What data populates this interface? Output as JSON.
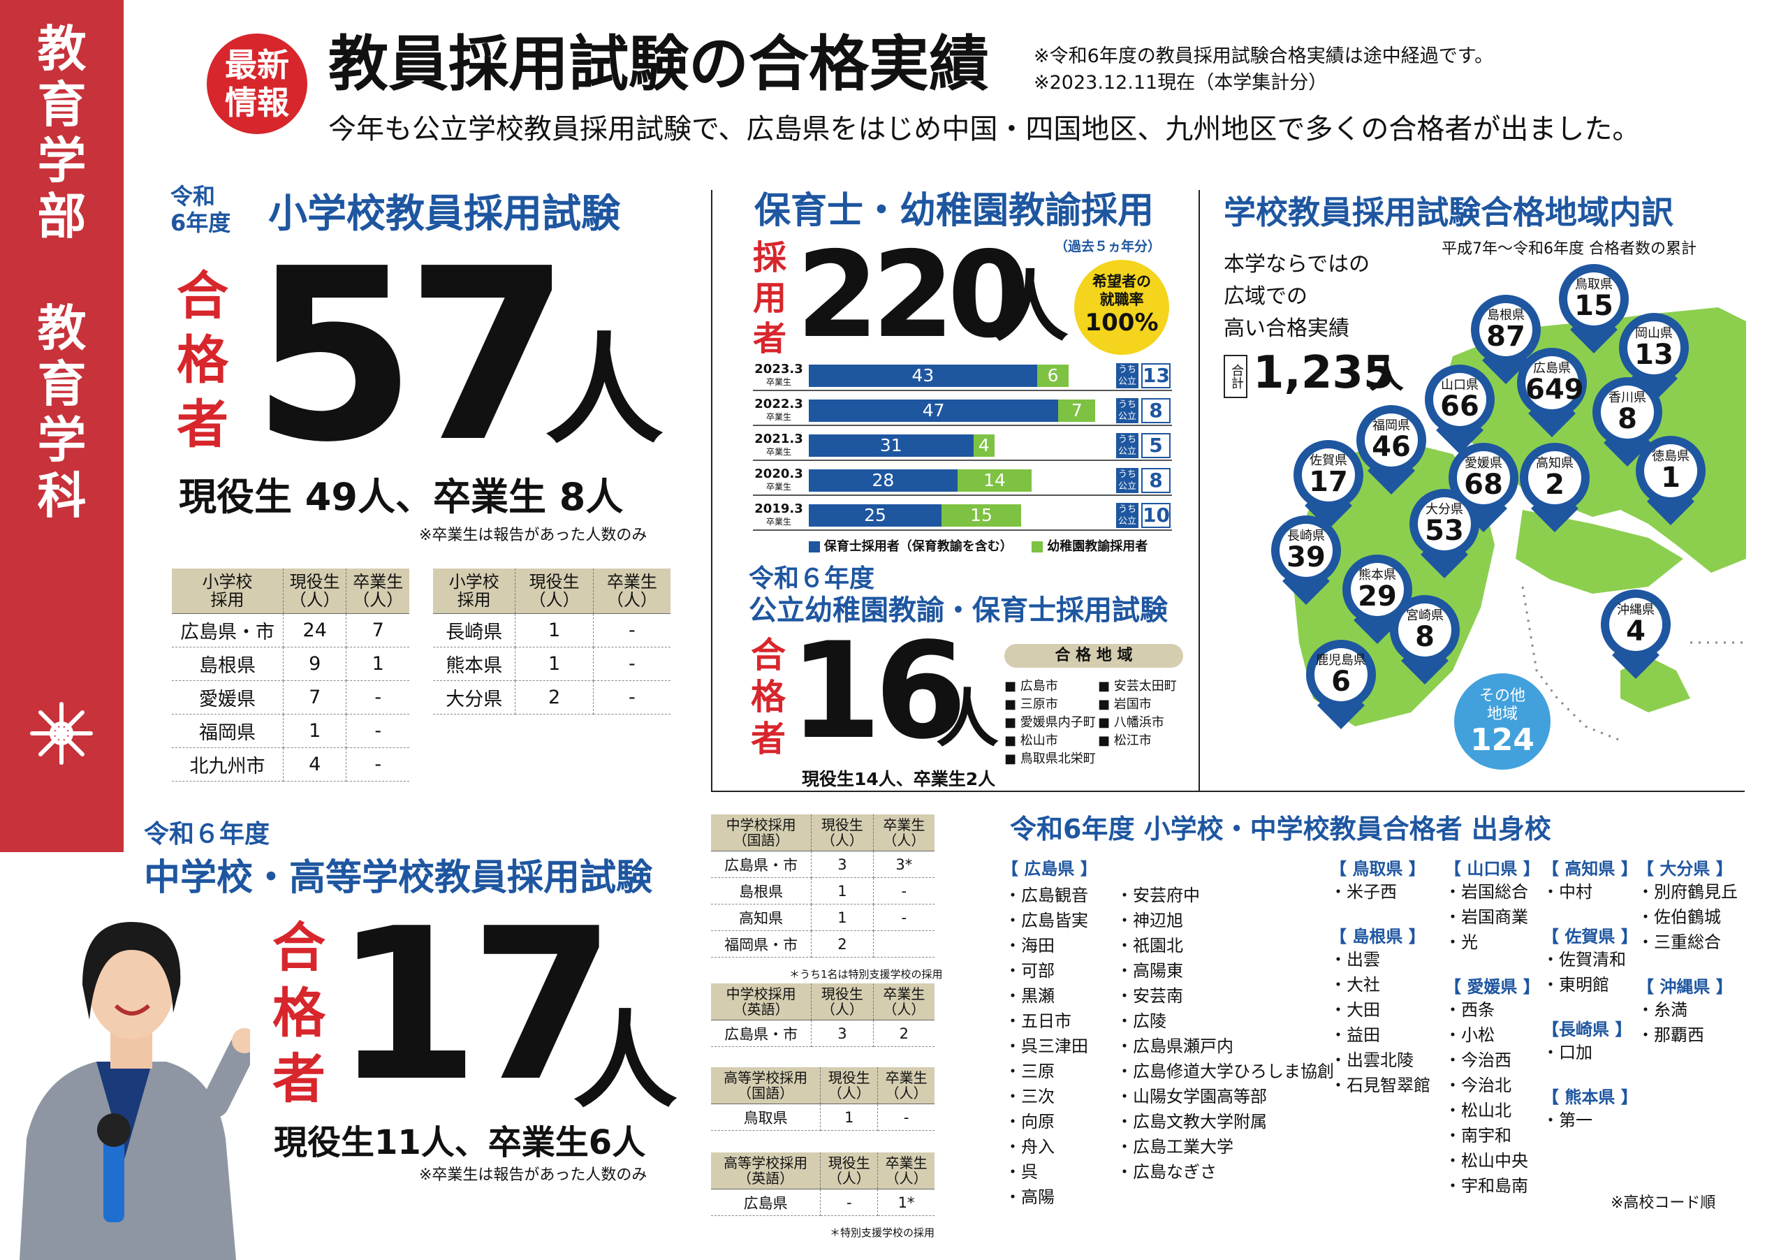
{
  "sidebar": {
    "department": "教育学部",
    "section": "教育学科"
  },
  "header": {
    "badge_line1": "最新",
    "badge_line2": "情報",
    "title": "教員採用試験の合格実績",
    "note1": "※令和6年度の教員採用試験合格実績は途中経過です。",
    "note2": "※2023.12.11現在（本学集計分）",
    "lead": "今年も公立学校教員採用試験で、広島県をはじめ中国・四国地区、九州地区で多くの合格者が出ました。"
  },
  "elem": {
    "year_line1": "令和",
    "year_line2": "6年度",
    "title": "小学校教員採用試験",
    "label": "合格者",
    "count": "57",
    "unit": "人",
    "breakdown": "現役生 49人、卒業生 8人",
    "note": "※卒業生は報告があった人数のみ",
    "table_headers": [
      "小学校\n採用",
      "現役生\n（人）",
      "卒業生\n（人）"
    ],
    "table1": [
      [
        "広島県・市",
        "24",
        "7"
      ],
      [
        "島根県",
        "9",
        "1"
      ],
      [
        "愛媛県",
        "7",
        "-"
      ],
      [
        "福岡県",
        "1",
        "-"
      ],
      [
        "北九州市",
        "4",
        "-"
      ]
    ],
    "table2": [
      [
        "長崎県",
        "1",
        "-"
      ],
      [
        "熊本県",
        "1",
        "-"
      ],
      [
        "大分県",
        "2",
        "-"
      ]
    ]
  },
  "nursery": {
    "title": "保育士・幼稚園教諭採用",
    "sub": "（過去５ヵ年分）",
    "label": "採用者",
    "count": "220",
    "unit": "人",
    "circle1": "希望者の",
    "circle2": "就職率",
    "circle3": "100%",
    "public_key": "うち\n公立",
    "legend1": "保育士採用者（保育教諭を含む）",
    "legend2": "幼稚園教諭採用者"
  },
  "chart_data": {
    "type": "bar",
    "stacked": true,
    "orientation": "horizontal",
    "categories": [
      "2023.3",
      "2022.3",
      "2021.3",
      "2020.3",
      "2019.3"
    ],
    "category_sub": "卒業生",
    "series": [
      {
        "name": "保育士採用者（保育教諭を含む）",
        "values": [
          43,
          47,
          31,
          28,
          25
        ]
      },
      {
        "name": "幼稚園教諭採用者",
        "values": [
          6,
          7,
          4,
          14,
          15
        ]
      }
    ],
    "public_counts": [
      13,
      8,
      5,
      8,
      10
    ],
    "colors": [
      "#1e56a0",
      "#7dc242"
    ]
  },
  "kinder": {
    "year": "令和６年度",
    "title": "公立幼稚園教諭・保育士採用試験",
    "label": "合格者",
    "count": "16",
    "unit": "人",
    "breakdown": "現役生14人、卒業生2人",
    "area_title": "合 格 地 域",
    "areas_left": [
      "広島市",
      "三原市",
      "愛媛県内子町",
      "松山市",
      "鳥取県北栄町"
    ],
    "areas_right": [
      "安芸太田町",
      "岩国市",
      "八幡浜市",
      "松江市"
    ]
  },
  "region": {
    "title": "学校教員採用試験合格地域内訳",
    "period": "平成7年～令和6年度 合格者数の累計",
    "lead1": "本学ならではの",
    "lead2": "広域での",
    "lead3": "高い合格実績",
    "total_label": "合計",
    "total": "1,235",
    "total_unit": "人",
    "pins": [
      {
        "name": "鳥取県",
        "value": "15"
      },
      {
        "name": "島根県",
        "value": "87"
      },
      {
        "name": "岡山県",
        "value": "13"
      },
      {
        "name": "広島県",
        "value": "649"
      },
      {
        "name": "山口県",
        "value": "66"
      },
      {
        "name": "香川県",
        "value": "8"
      },
      {
        "name": "福岡県",
        "value": "46"
      },
      {
        "name": "愛媛県",
        "value": "68"
      },
      {
        "name": "高知県",
        "value": "2"
      },
      {
        "name": "徳島県",
        "value": "1"
      },
      {
        "name": "佐賀県",
        "value": "17"
      },
      {
        "name": "大分県",
        "value": "53"
      },
      {
        "name": "長崎県",
        "value": "39"
      },
      {
        "name": "熊本県",
        "value": "29"
      },
      {
        "name": "宮崎県",
        "value": "8"
      },
      {
        "name": "鹿児島県",
        "value": "6"
      },
      {
        "name": "沖縄県",
        "value": "4"
      }
    ],
    "other_label1": "その他",
    "other_label2": "地域",
    "other_value": "124"
  },
  "secondary": {
    "year": "令和６年度",
    "title": "中学校・高等学校教員採用試験",
    "label": "合格者",
    "count": "17",
    "unit": "人",
    "breakdown": "現役生11人、卒業生6人",
    "note": "※卒業生は報告があった人数のみ",
    "tables": [
      {
        "h": [
          "中学校採用\n（国語）",
          "現役生\n（人）",
          "卒業生\n（人）"
        ],
        "rows": [
          [
            "広島県・市",
            "3",
            "3*"
          ],
          [
            "島根県",
            "1",
            "-"
          ],
          [
            "高知県",
            "1",
            "-"
          ],
          [
            "福岡県・市",
            "2",
            ""
          ]
        ],
        "note": "＊うち1名は特別支援学校の採用"
      },
      {
        "h": [
          "中学校採用\n（英語）",
          "現役生\n（人）",
          "卒業生\n（人）"
        ],
        "rows": [
          [
            "広島県・市",
            "3",
            "2"
          ]
        ],
        "note": ""
      },
      {
        "h": [
          "高等学校採用\n（国語）",
          "現役生\n（人）",
          "卒業生\n（人）"
        ],
        "rows": [
          [
            "鳥取県",
            "1",
            "-"
          ]
        ],
        "note": ""
      },
      {
        "h": [
          "高等学校採用\n（英語）",
          "現役生\n（人）",
          "卒業生\n（人）"
        ],
        "rows": [
          [
            "広島県",
            "-",
            "1*"
          ]
        ],
        "note": "＊特別支援学校の採用"
      }
    ]
  },
  "schools": {
    "title": "令和6年度 小学校・中学校教員合格者 出身校",
    "hiroshima_head": "【 広島県 】",
    "hiroshima_col1": [
      "・広島観音",
      "・広島皆実",
      "・海田",
      "・可部",
      "・黒瀬",
      "・五日市",
      "・呉三津田",
      "・三原",
      "・三次",
      "・向原",
      "・舟入",
      "・呉",
      "・高陽"
    ],
    "hiroshima_col2": [
      "・安芸府中",
      "・神辺旭",
      "・祇園北",
      "・高陽東",
      "・安芸南",
      "・広陵",
      "・広島県瀬戸内",
      "・広島修道大学ひろしま協創",
      "・山陽女学園高等部",
      "・広島文教大学附属",
      "・広島工業大学",
      "・広島なぎさ"
    ],
    "tottori_head": "【 鳥取県 】",
    "tottori": [
      "・米子西"
    ],
    "shimane_head": "【 島根県 】",
    "shimane": [
      "・出雲",
      "・大社",
      "・大田",
      "・益田",
      "・出雲北陵",
      "・石見智翠館"
    ],
    "yamaguchi_head": "【 山口県 】",
    "yamaguchi": [
      "・岩国総合",
      "・岩国商業",
      "・光"
    ],
    "ehime_head": "【 愛媛県 】",
    "ehime": [
      "・西条",
      "・小松",
      "・今治西",
      "・今治北",
      "・松山北",
      "・南宇和",
      "・松山中央",
      "・宇和島南"
    ],
    "kochi_head": "【 高知県 】",
    "kochi": [
      "・中村"
    ],
    "saga_head": "【 佐賀県 】",
    "saga": [
      "・佐賀清和",
      "・東明館"
    ],
    "nagasaki_head": "【長崎県 】",
    "nagasaki": [
      "・口加"
    ],
    "kumamoto_head": "【 熊本県 】",
    "kumamoto": [
      "・第一"
    ],
    "oita_head": "【 大分県 】",
    "oita": [
      "・別府鶴見丘",
      "・佐伯鶴城",
      "・三重総合"
    ],
    "okinawa_head": "【 沖縄県 】",
    "okinawa": [
      "・糸満",
      "・那覇西"
    ],
    "footnote": "※高校コード順"
  },
  "colors": {
    "sidebar": "#c8323b",
    "accent_red": "#d7262c",
    "blue": "#1e56a0",
    "green": "#7dc242",
    "map": "#8ccf4f"
  }
}
